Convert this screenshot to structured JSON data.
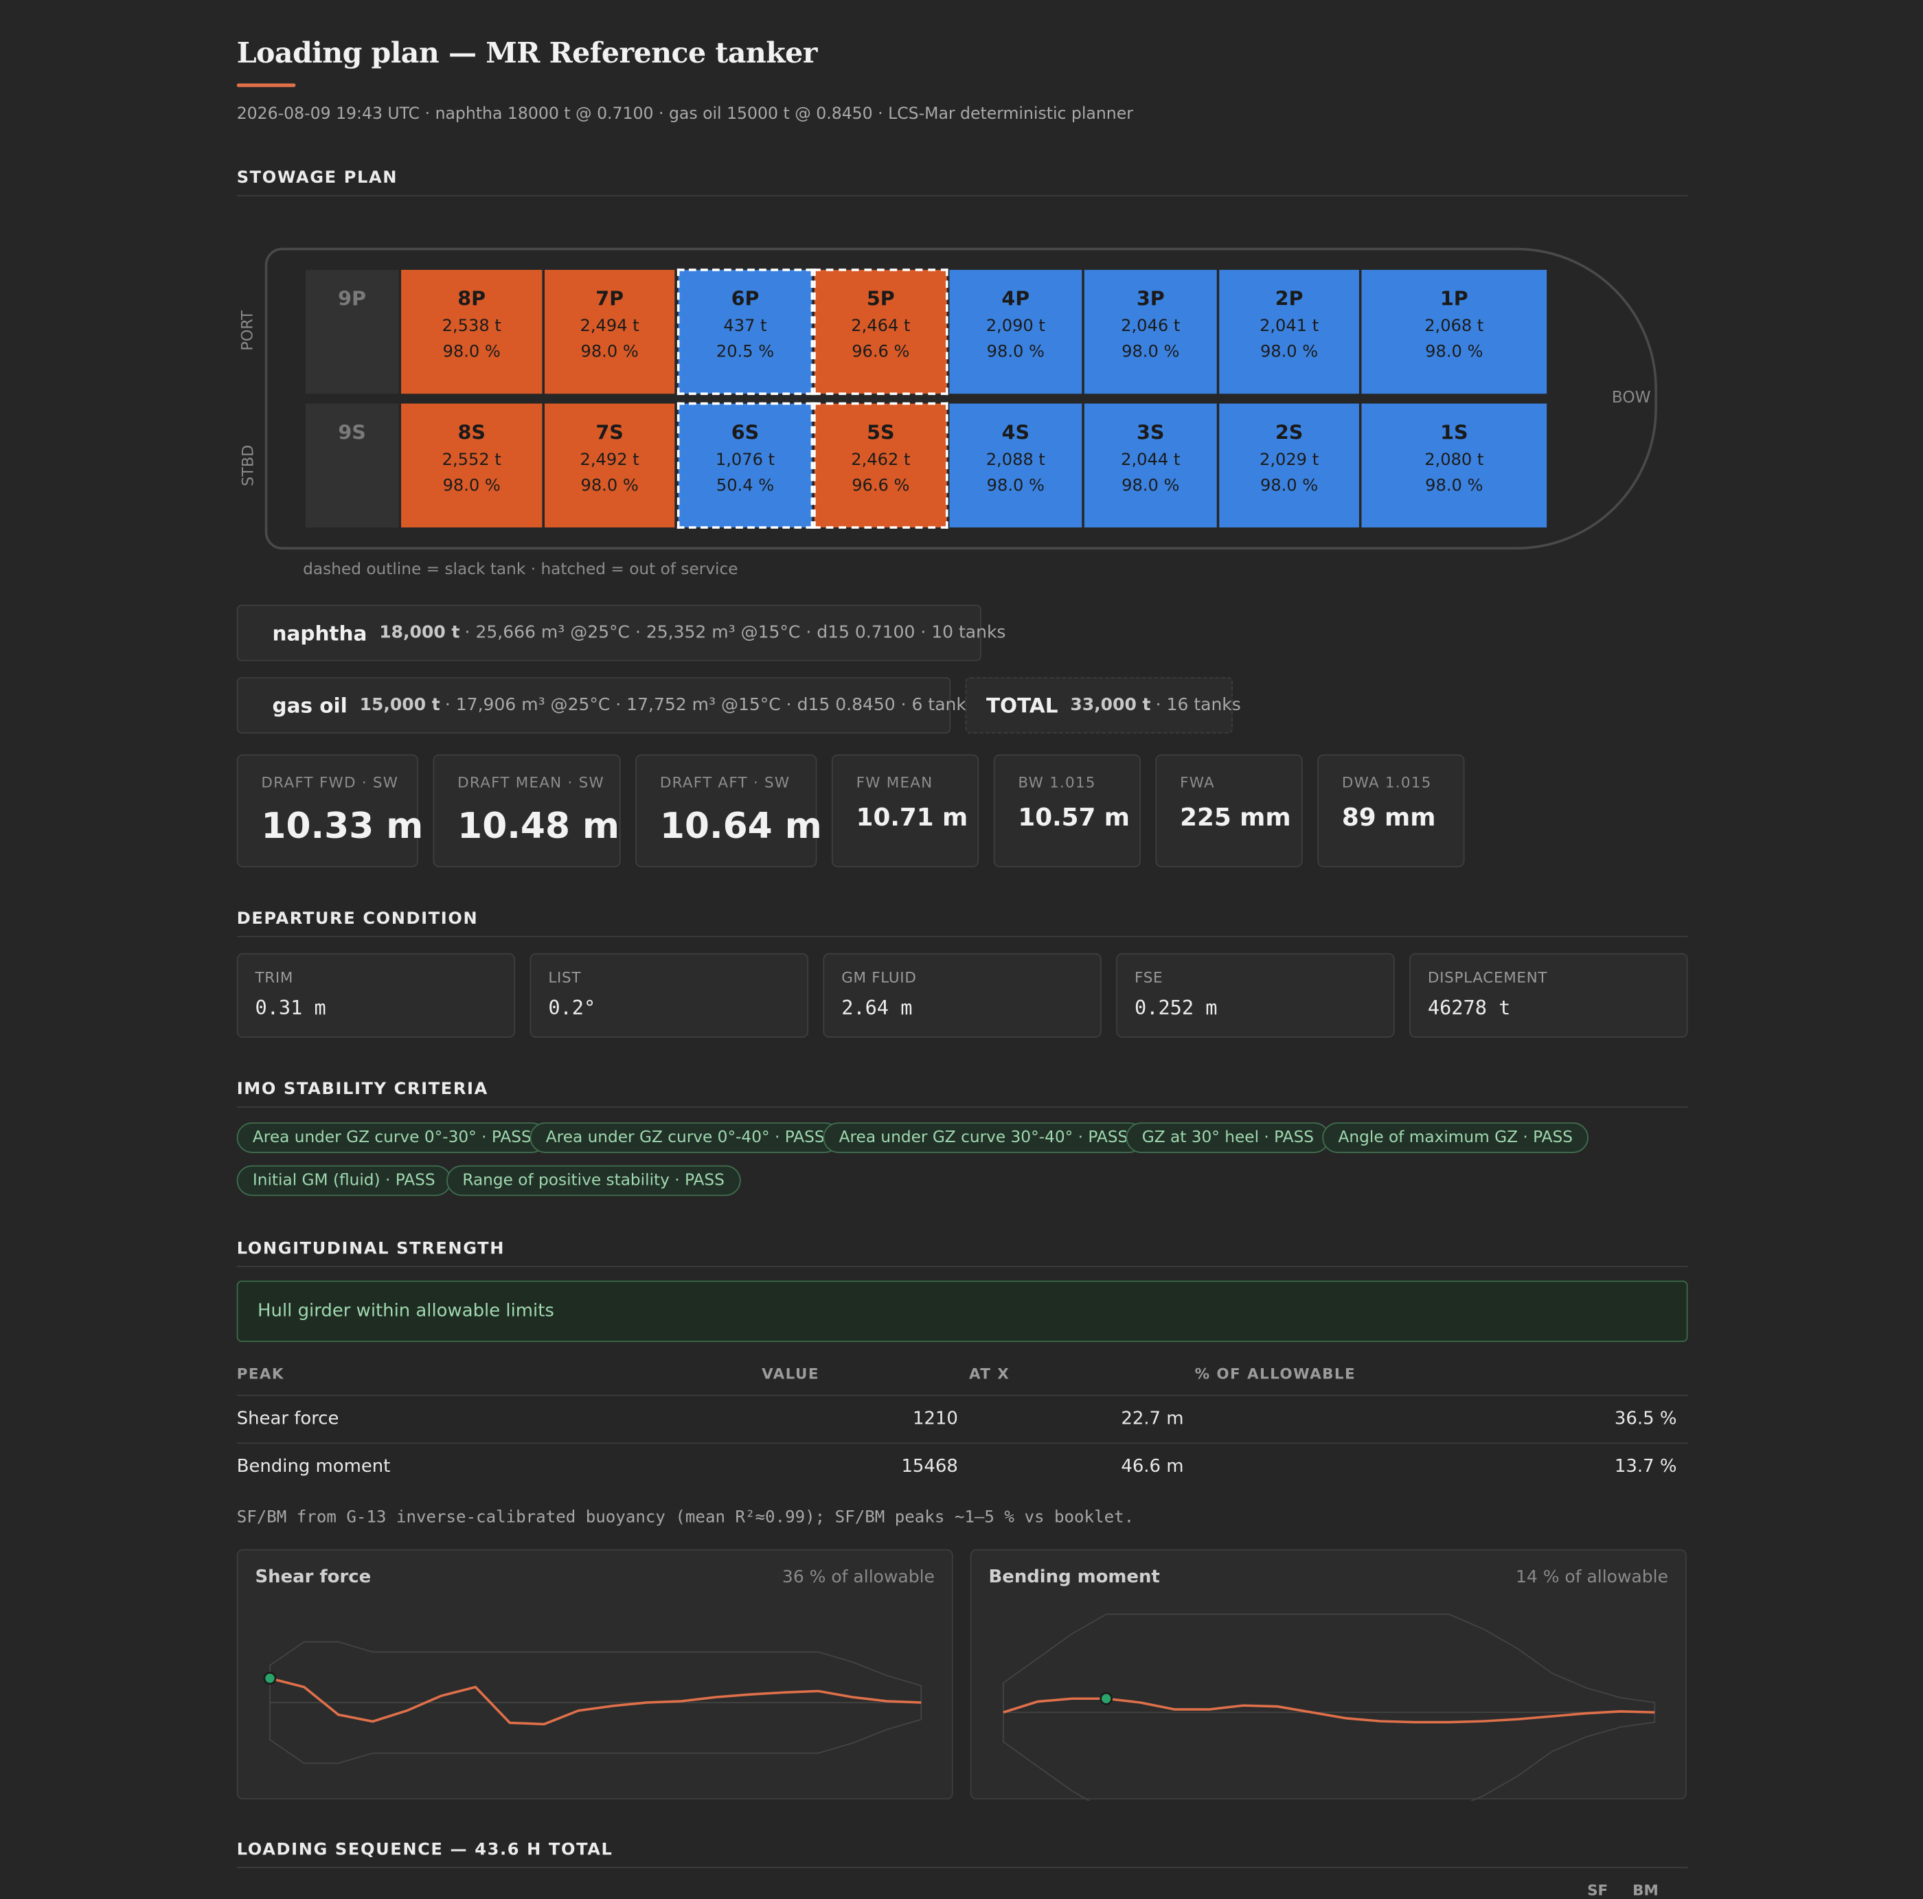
{
  "title": "Loading plan — MR Reference tanker",
  "subtitle": "2026-08-09 19:43 UTC · naphtha 18000 t @ 0.7100 · gas oil 15000 t @ 0.8450 · LCS-Mar deterministic planner",
  "sections": {
    "stowage": "STOWAGE PLAN",
    "departure": "DEPARTURE CONDITION",
    "imo": "IMO STABILITY CRITERIA",
    "strength": "LONGITUDINAL STRENGTH",
    "sequence": "LOADING SEQUENCE — 43.6 H TOTAL"
  },
  "ship": {
    "port_label": "PORT",
    "stbd_label": "STBD",
    "bow_label": "BOW",
    "legend_note": "dashed outline = slack tank · hatched = out of service",
    "port": [
      {
        "name": "9P",
        "mass": "",
        "fill": "",
        "cargo": "empty",
        "slack": false
      },
      {
        "name": "8P",
        "mass": "2,538 t",
        "fill": "98.0 %",
        "cargo": "gas",
        "slack": false
      },
      {
        "name": "7P",
        "mass": "2,494 t",
        "fill": "98.0 %",
        "cargo": "gas",
        "slack": false
      },
      {
        "name": "6P",
        "mass": "437 t",
        "fill": "20.5 %",
        "cargo": "naph",
        "slack": true
      },
      {
        "name": "5P",
        "mass": "2,464 t",
        "fill": "96.6 %",
        "cargo": "gas",
        "slack": true
      },
      {
        "name": "4P",
        "mass": "2,090 t",
        "fill": "98.0 %",
        "cargo": "naph",
        "slack": false
      },
      {
        "name": "3P",
        "mass": "2,046 t",
        "fill": "98.0 %",
        "cargo": "naph",
        "slack": false
      },
      {
        "name": "2P",
        "mass": "2,041 t",
        "fill": "98.0 %",
        "cargo": "naph",
        "slack": false
      },
      {
        "name": "1P",
        "mass": "2,068 t",
        "fill": "98.0 %",
        "cargo": "naph",
        "slack": false
      }
    ],
    "stbd": [
      {
        "name": "9S",
        "mass": "",
        "fill": "",
        "cargo": "empty",
        "slack": false
      },
      {
        "name": "8S",
        "mass": "2,552 t",
        "fill": "98.0 %",
        "cargo": "gas",
        "slack": false
      },
      {
        "name": "7S",
        "mass": "2,492 t",
        "fill": "98.0 %",
        "cargo": "gas",
        "slack": false
      },
      {
        "name": "6S",
        "mass": "1,076 t",
        "fill": "50.4 %",
        "cargo": "naph",
        "slack": true
      },
      {
        "name": "5S",
        "mass": "2,462 t",
        "fill": "96.6 %",
        "cargo": "gas",
        "slack": true
      },
      {
        "name": "4S",
        "mass": "2,088 t",
        "fill": "98.0 %",
        "cargo": "naph",
        "slack": false
      },
      {
        "name": "3S",
        "mass": "2,044 t",
        "fill": "98.0 %",
        "cargo": "naph",
        "slack": false
      },
      {
        "name": "2S",
        "mass": "2,029 t",
        "fill": "98.0 %",
        "cargo": "naph",
        "slack": false
      },
      {
        "name": "1S",
        "mass": "2,080 t",
        "fill": "98.0 %",
        "cargo": "naph",
        "slack": false
      }
    ]
  },
  "colors": {
    "naphtha": "#3b82e0",
    "gas_oil": "#d95a27",
    "accent": "#e0704a",
    "pass": "#9fd8b0"
  },
  "cargo": {
    "naphtha": {
      "name": "naphtha",
      "mass": "18,000 t",
      "detail": "· 25,666 m³ @25°C · 25,352 m³ @15°C · d15 0.7100 · 10 tanks"
    },
    "gas_oil": {
      "name": "gas oil",
      "mass": "15,000 t",
      "detail": "· 17,906 m³ @25°C · 17,752 m³ @15°C · d15 0.8450 · 6 tanks"
    },
    "total": {
      "name": "TOTAL",
      "mass": "33,000 t",
      "detail": "· 16 tanks"
    }
  },
  "drafts": [
    {
      "label": "DRAFT FWD · SW",
      "value": "10.33 m"
    },
    {
      "label": "DRAFT MEAN · SW",
      "value": "10.48 m"
    },
    {
      "label": "DRAFT AFT · SW",
      "value": "10.64 m"
    },
    {
      "label": "FW MEAN",
      "value": "10.71 m"
    },
    {
      "label": "BW 1.015",
      "value": "10.57 m"
    },
    {
      "label": "FWA",
      "value": "225 mm"
    },
    {
      "label": "DWA 1.015",
      "value": "89 mm"
    }
  ],
  "departure": [
    {
      "label": "TRIM",
      "value": "0.31 m"
    },
    {
      "label": "LIST",
      "value": "0.2°"
    },
    {
      "label": "GM FLUID",
      "value": "2.64 m"
    },
    {
      "label": "FSE",
      "value": "0.252 m"
    },
    {
      "label": "DISPLACEMENT",
      "value": "46278 t"
    }
  ],
  "imo_criteria": [
    "Area under GZ curve 0°-30° · PASS",
    "Area under GZ curve 0°-40° · PASS",
    "Area under GZ curve 30°-40° · PASS",
    "GZ at 30° heel · PASS",
    "Angle of maximum GZ · PASS",
    "Initial GM (fluid) · PASS",
    "Range of positive stability · PASS"
  ],
  "strength": {
    "status": "Hull girder within allowable limits",
    "headers": {
      "peak": "PEAK",
      "value": "VALUE",
      "at_x": "AT X",
      "pct": "% OF ALLOWABLE"
    },
    "rows": [
      {
        "peak": "Shear force",
        "value": "1210",
        "at_x": "22.7 m",
        "pct": "36.5 %"
      },
      {
        "peak": "Bending moment",
        "value": "15468",
        "at_x": "46.6 m",
        "pct": "13.7 %"
      }
    ],
    "note": "SF/BM from G-13 inverse-calibrated buoyancy (mean R²≈0.99); SF/BM peaks ~1–5 % vs booklet.",
    "plots": [
      {
        "title": "Shear force",
        "pct_label": "36 % of allowable",
        "pct_allowable": 36,
        "envelope_upper": [
          0.55,
          0.9,
          0.9,
          0.75,
          0.75,
          0.75,
          0.75,
          0.75,
          0.75,
          0.75,
          0.75,
          0.75,
          0.75,
          0.75,
          0.75,
          0.75,
          0.75,
          0.6,
          0.4,
          0.25
        ],
        "values": [
          0.36,
          0.23,
          -0.18,
          -0.28,
          -0.12,
          0.1,
          0.23,
          -0.3,
          -0.32,
          -0.12,
          -0.05,
          0.0,
          0.02,
          0.08,
          0.12,
          0.15,
          0.17,
          0.08,
          0.02,
          0.0
        ]
      },
      {
        "title": "Bending moment",
        "pct_label": "14 % of allowable",
        "pct_allowable": 14,
        "envelope_upper": [
          0.3,
          0.55,
          0.8,
          1.0,
          1.0,
          1.0,
          1.0,
          1.0,
          1.0,
          1.0,
          1.0,
          1.0,
          1.0,
          1.0,
          0.85,
          0.65,
          0.4,
          0.25,
          0.15,
          0.1
        ],
        "values": [
          0.0,
          0.11,
          0.14,
          0.14,
          0.1,
          0.03,
          0.03,
          0.07,
          0.06,
          0.0,
          -0.06,
          -0.09,
          -0.1,
          -0.1,
          -0.09,
          -0.07,
          -0.04,
          -0.01,
          0.01,
          0.0
        ]
      }
    ]
  },
  "sequence_cols": {
    "sf": "SF",
    "bm": "BM"
  }
}
